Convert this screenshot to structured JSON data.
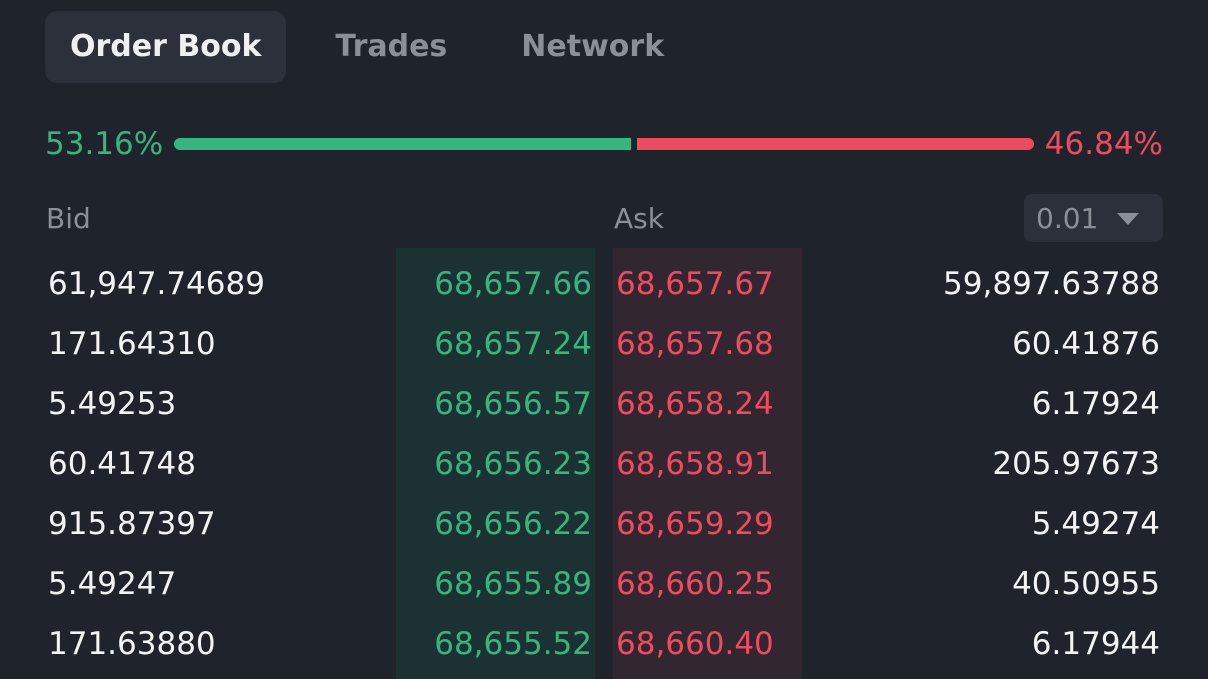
{
  "tabs": [
    {
      "label": "Order Book",
      "active": true
    },
    {
      "label": "Trades",
      "active": false
    },
    {
      "label": "Network",
      "active": false
    }
  ],
  "ratio": {
    "buy_label": "53.16%",
    "sell_label": "46.84%",
    "buy_fraction": 0.5316,
    "buy_color": "#35b57f",
    "sell_color": "#ef4a5e"
  },
  "headers": {
    "bid": "Bid",
    "ask": "Ask"
  },
  "precision": {
    "value": "0.01",
    "icon": "chevron-down-icon"
  },
  "rows": [
    {
      "bid_size": "61,947.74689",
      "bid_price": "68,657.66",
      "ask_price": "68,657.67",
      "ask_size": "59,897.63788"
    },
    {
      "bid_size": "171.64310",
      "bid_price": "68,657.24",
      "ask_price": "68,657.68",
      "ask_size": "60.41876"
    },
    {
      "bid_size": "5.49253",
      "bid_price": "68,656.57",
      "ask_price": "68,658.24",
      "ask_size": "6.17924"
    },
    {
      "bid_size": "60.41748",
      "bid_price": "68,656.23",
      "ask_price": "68,658.91",
      "ask_size": "205.97673"
    },
    {
      "bid_size": "915.87397",
      "bid_price": "68,656.22",
      "ask_price": "68,659.29",
      "ask_size": "5.49274"
    },
    {
      "bid_size": "5.49247",
      "bid_price": "68,655.89",
      "ask_price": "68,660.25",
      "ask_size": "40.50955"
    },
    {
      "bid_size": "171.63880",
      "bid_price": "68,655.52",
      "ask_price": "68,660.40",
      "ask_size": "6.17944"
    }
  ]
}
